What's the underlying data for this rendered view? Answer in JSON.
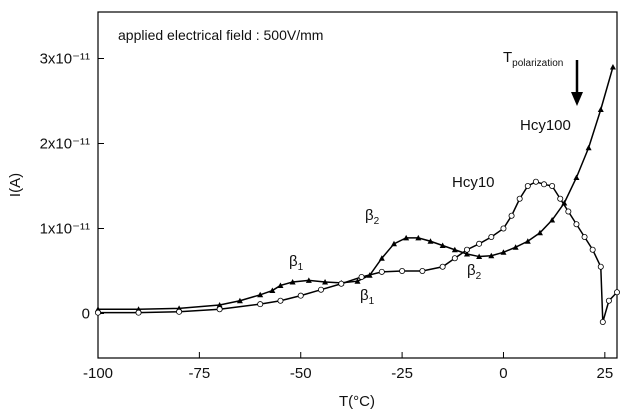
{
  "chart_data": {
    "type": "line",
    "title": "applied electrical field : 500V/mm",
    "x_label": "T(°C)",
    "y_label": "I(A)",
    "xlim": [
      -100,
      28
    ],
    "xticks": [
      -100,
      -75,
      -50,
      -25,
      0,
      25
    ],
    "ylim": [
      -5e-12,
      3.5e-11
    ],
    "yticks": [
      0,
      {
        "value": 1e-11,
        "label": "1x10⁻¹¹"
      },
      {
        "value": 2e-11,
        "label": "2x10⁻¹¹"
      },
      {
        "value": 3e-11,
        "label": "3x10⁻¹¹"
      }
    ],
    "annotations": [
      {
        "text": "T",
        "sub": "polarization"
      },
      {
        "text": "Hcy100"
      },
      {
        "text": "Hcy10"
      },
      {
        "text": "β",
        "sub": "1"
      },
      {
        "text": "β",
        "sub": "2"
      },
      {
        "text": "β",
        "sub": "1"
      },
      {
        "text": "β",
        "sub": "2"
      }
    ],
    "series": [
      {
        "name": "Hcy100",
        "color": "#000000",
        "marker": "triangle",
        "x": [
          -100,
          -90,
          -80,
          -70,
          -65,
          -60,
          -57,
          -55,
          -52,
          -48,
          -44,
          -40,
          -36,
          -33,
          -30,
          -27,
          -24,
          -21,
          -18,
          -15,
          -12,
          -9,
          -6,
          -3,
          0,
          3,
          6,
          9,
          12,
          15,
          18,
          21,
          24,
          27
        ],
        "values": [
          5e-13,
          5e-13,
          6e-13,
          1e-12,
          1.5e-12,
          2.2e-12,
          2.7e-12,
          3.3e-12,
          3.7e-12,
          3.9e-12,
          3.7e-12,
          3.6e-12,
          3.8e-12,
          4.5e-12,
          6.5e-12,
          8.2e-12,
          8.9e-12,
          8.9e-12,
          8.5e-12,
          8e-12,
          7.5e-12,
          7e-12,
          6.7e-12,
          6.8e-12,
          7.2e-12,
          7.8e-12,
          8.5e-12,
          9.5e-12,
          1.1e-11,
          1.3e-11,
          1.6e-11,
          1.95e-11,
          2.4e-11,
          2.9e-11
        ]
      },
      {
        "name": "Hcy10",
        "color": "#000000",
        "marker": "circle",
        "x": [
          -100,
          -90,
          -80,
          -70,
          -60,
          -55,
          -50,
          -45,
          -40,
          -35,
          -30,
          -25,
          -20,
          -15,
          -12,
          -9,
          -6,
          -3,
          0,
          2,
          4,
          6,
          8,
          10,
          12,
          14,
          16,
          18,
          20,
          22,
          24,
          24.5,
          26,
          28
        ],
        "values": [
          1e-13,
          1e-13,
          2e-13,
          5e-13,
          1.1e-12,
          1.5e-12,
          2.1e-12,
          2.8e-12,
          3.5e-12,
          4.3e-12,
          4.9e-12,
          5e-12,
          5e-12,
          5.5e-12,
          6.5e-12,
          7.5e-12,
          8.2e-12,
          9e-12,
          1e-11,
          1.15e-11,
          1.35e-11,
          1.5e-11,
          1.55e-11,
          1.52e-11,
          1.5e-11,
          1.35e-11,
          1.2e-11,
          1.05e-11,
          9e-12,
          7.5e-12,
          5.5e-12,
          -1e-12,
          1.5e-12,
          2.5e-12
        ]
      }
    ]
  }
}
